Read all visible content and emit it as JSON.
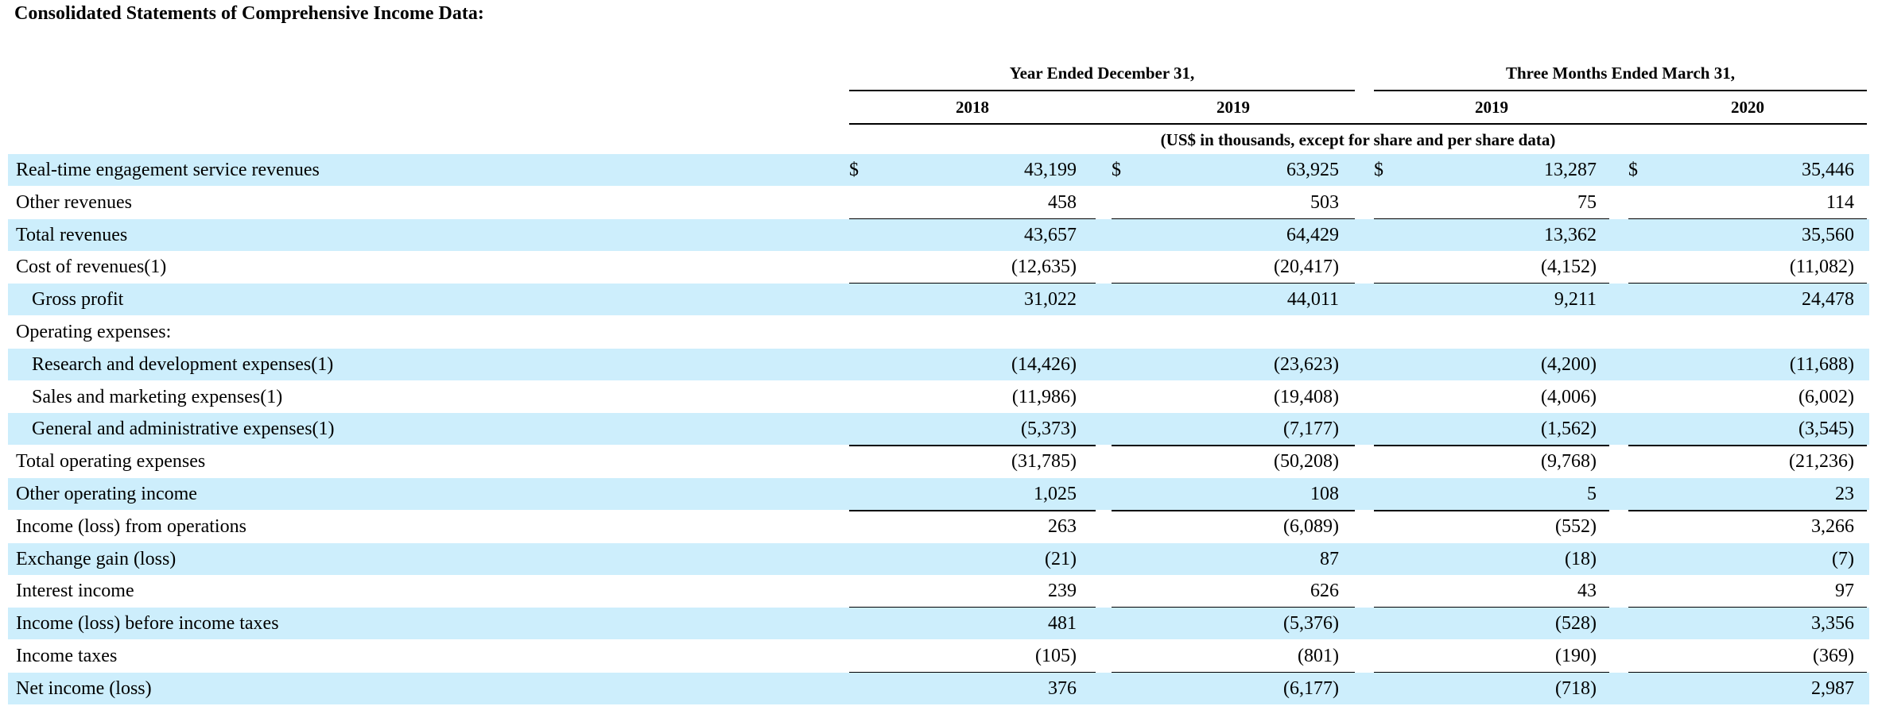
{
  "title": "Consolidated Statements of Comprehensive Income Data:",
  "headers": {
    "group1": "Year Ended December 31,",
    "group2": "Three Months Ended March 31,",
    "columns": [
      "2018",
      "2019",
      "2019",
      "2020"
    ],
    "unit_note": "(US$ in thousands, except for share and per share data)"
  },
  "currency_symbol": "$",
  "rows": [
    {
      "label": "Real-time engagement service revenues",
      "values": [
        "43,199",
        "63,925",
        "13,287",
        "35,446"
      ],
      "shaded": true,
      "indent": false,
      "currency": true,
      "rule_below": false
    },
    {
      "label": "Other revenues",
      "values": [
        "458",
        "503",
        "75",
        "114"
      ],
      "shaded": false,
      "indent": false,
      "currency": false,
      "rule_below": true
    },
    {
      "label": "Total revenues",
      "values": [
        "43,657",
        "64,429",
        "13,362",
        "35,560"
      ],
      "shaded": true,
      "indent": false,
      "currency": false,
      "rule_below": false
    },
    {
      "label": "Cost of revenues(1)",
      "values": [
        "(12,635)",
        "(20,417)",
        "(4,152)",
        "(11,082)"
      ],
      "shaded": false,
      "indent": false,
      "currency": false,
      "rule_below": true
    },
    {
      "label": "Gross profit",
      "values": [
        "31,022",
        "44,011",
        "9,211",
        "24,478"
      ],
      "shaded": true,
      "indent": true,
      "currency": false,
      "rule_below": false
    },
    {
      "label": "Operating expenses:",
      "values": [
        "",
        "",
        "",
        ""
      ],
      "shaded": false,
      "indent": false,
      "currency": false,
      "rule_below": false
    },
    {
      "label": "Research and development expenses(1)",
      "values": [
        "(14,426)",
        "(23,623)",
        "(4,200)",
        "(11,688)"
      ],
      "shaded": true,
      "indent": true,
      "currency": false,
      "rule_below": false
    },
    {
      "label": "Sales and marketing expenses(1)",
      "values": [
        "(11,986)",
        "(19,408)",
        "(4,006)",
        "(6,002)"
      ],
      "shaded": false,
      "indent": true,
      "currency": false,
      "rule_below": false
    },
    {
      "label": "General and administrative expenses(1)",
      "values": [
        "(5,373)",
        "(7,177)",
        "(1,562)",
        "(3,545)"
      ],
      "shaded": true,
      "indent": true,
      "currency": false,
      "rule_below": true
    },
    {
      "label": "Total operating expenses",
      "values": [
        "(31,785)",
        "(50,208)",
        "(9,768)",
        "(21,236)"
      ],
      "shaded": false,
      "indent": false,
      "currency": false,
      "rule_below": false
    },
    {
      "label": "Other operating income",
      "values": [
        "1,025",
        "108",
        "5",
        "23"
      ],
      "shaded": true,
      "indent": false,
      "currency": false,
      "rule_below": true
    },
    {
      "label": "Income (loss) from operations",
      "values": [
        "263",
        "(6,089)",
        "(552)",
        "3,266"
      ],
      "shaded": false,
      "indent": false,
      "currency": false,
      "rule_below": false
    },
    {
      "label": "Exchange gain (loss)",
      "values": [
        "(21)",
        "87",
        "(18)",
        "(7)"
      ],
      "shaded": true,
      "indent": false,
      "currency": false,
      "rule_below": false
    },
    {
      "label": "Interest income",
      "values": [
        "239",
        "626",
        "43",
        "97"
      ],
      "shaded": false,
      "indent": false,
      "currency": false,
      "rule_below": true
    },
    {
      "label": "Income (loss) before income taxes",
      "values": [
        "481",
        "(5,376)",
        "(528)",
        "3,356"
      ],
      "shaded": true,
      "indent": false,
      "currency": false,
      "rule_below": false
    },
    {
      "label": "Income taxes",
      "values": [
        "(105)",
        "(801)",
        "(190)",
        "(369)"
      ],
      "shaded": false,
      "indent": false,
      "currency": false,
      "rule_below": true
    },
    {
      "label": "Net income (loss)",
      "values": [
        "376",
        "(6,177)",
        "(718)",
        "2,987"
      ],
      "shaded": true,
      "indent": false,
      "currency": false,
      "rule_below": false
    }
  ],
  "colors": {
    "row_shade": "#cdeefc",
    "text": "#000000",
    "rule": "#000000"
  }
}
